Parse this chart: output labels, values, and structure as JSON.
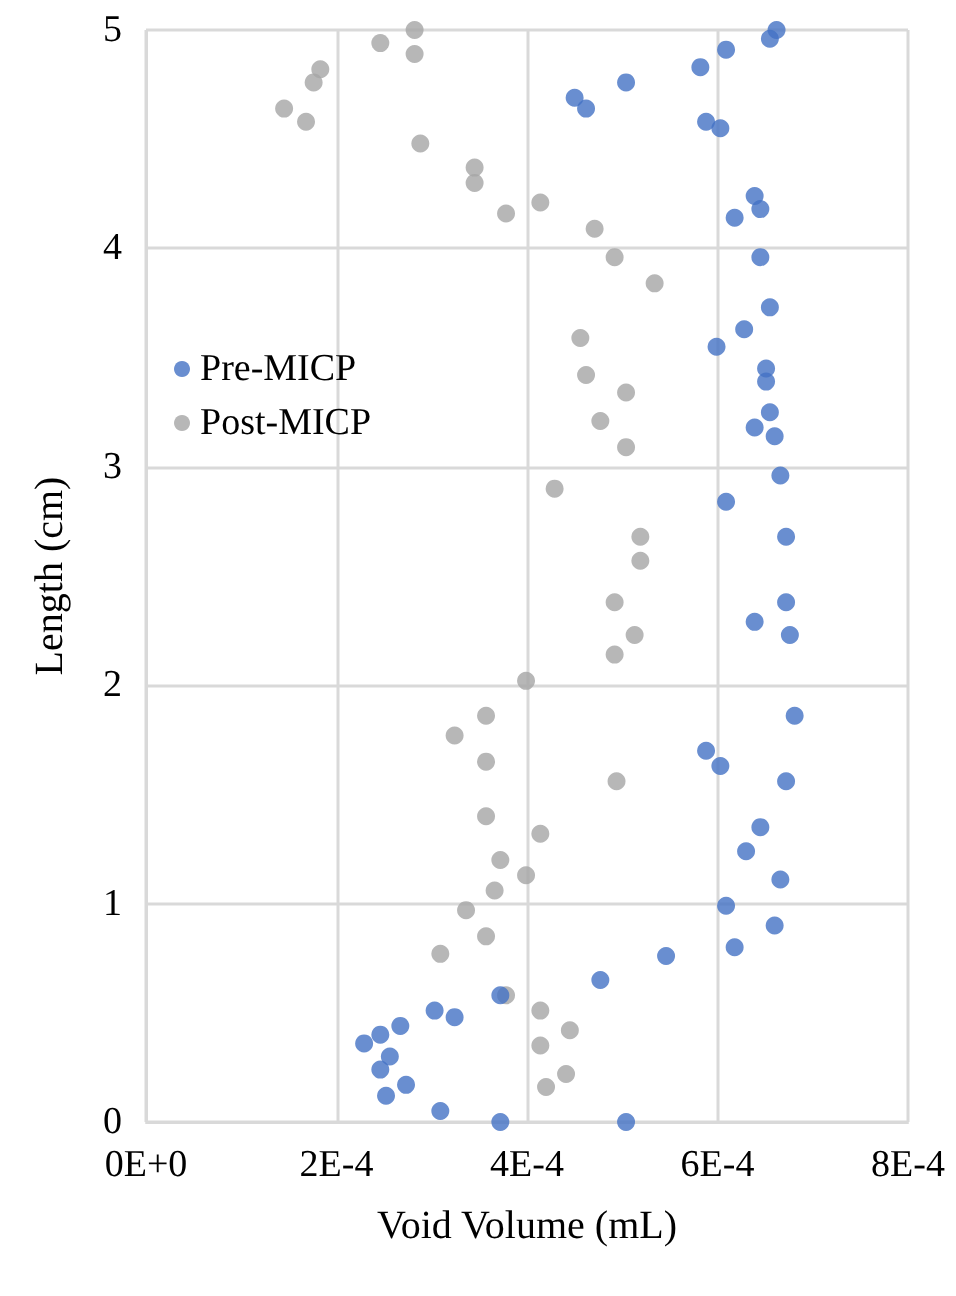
{
  "chart_data": {
    "type": "scatter",
    "xlabel": "Void Volume (mL)",
    "ylabel": "Length (cm)",
    "xlim": [
      0,
      0.0008
    ],
    "xticks": [
      {
        "value": 0,
        "label": "0E+0"
      },
      {
        "value": 0.0002,
        "label": "2E-4"
      },
      {
        "value": 0.0004,
        "label": "4E-4"
      },
      {
        "value": 0.0006,
        "label": "6E-4"
      },
      {
        "value": 0.0008,
        "label": "8E-4"
      }
    ],
    "ylim": [
      0,
      5
    ],
    "yticks": [
      0,
      1,
      2,
      3,
      4,
      5
    ],
    "grid": true,
    "legend": "left",
    "marker": "circle",
    "series": [
      {
        "name": "Pre-MICP",
        "color": "#4472c4",
        "x": [
          0.000504,
          0.000372,
          0.000309,
          0.000252,
          0.000273,
          0.000246,
          0.000256,
          0.000229,
          0.000246,
          0.000267,
          0.000324,
          0.000303,
          0.000372,
          0.000477,
          0.000546,
          0.000618,
          0.00066,
          0.000609,
          0.000666,
          0.00063,
          0.000645,
          0.000672,
          0.000603,
          0.000588,
          0.000681,
          0.000676,
          0.000639,
          0.000672,
          0.000672,
          0.000609,
          0.000666,
          0.00066,
          0.000639,
          0.000655,
          0.000651,
          0.000651,
          0.000599,
          0.000628,
          0.000655,
          0.000645,
          0.000618,
          0.000645,
          0.000639,
          0.000603,
          0.000588,
          0.000462,
          0.00045,
          0.000504,
          0.000582,
          0.000609,
          0.000655,
          0.000662
        ],
        "values": [
          0,
          0,
          0.05,
          0.12,
          0.17,
          0.24,
          0.3,
          0.36,
          0.4,
          0.44,
          0.48,
          0.51,
          0.58,
          0.65,
          0.76,
          0.8,
          0.9,
          0.99,
          1.11,
          1.24,
          1.35,
          1.56,
          1.63,
          1.7,
          1.86,
          2.23,
          2.29,
          2.38,
          2.68,
          2.84,
          2.96,
          3.14,
          3.18,
          3.25,
          3.39,
          3.45,
          3.55,
          3.63,
          3.73,
          3.96,
          4.14,
          4.18,
          4.24,
          4.55,
          4.58,
          4.64,
          4.69,
          4.76,
          4.83,
          4.91,
          4.96,
          5
        ]
      },
      {
        "name": "Post-MICP",
        "color": "#a5a5a5",
        "x": [
          0.00042,
          0.000441,
          0.000414,
          0.000445,
          0.000414,
          0.000378,
          0.000309,
          0.000357,
          0.000336,
          0.000366,
          0.000399,
          0.000372,
          0.000414,
          0.000357,
          0.000494,
          0.000357,
          0.000324,
          0.000357,
          0.000399,
          0.000492,
          0.000513,
          0.000492,
          0.000519,
          0.000519,
          0.000429,
          0.000504,
          0.000477,
          0.000504,
          0.000462,
          0.000456,
          0.000534,
          0.000492,
          0.000471,
          0.000378,
          0.000414,
          0.000345,
          0.000345,
          0.000288,
          0.000168,
          0.000145,
          0.000176,
          0.000183,
          0.000282,
          0.000246,
          0.000282
        ],
        "values": [
          0.16,
          0.22,
          0.35,
          0.42,
          0.51,
          0.58,
          0.77,
          0.85,
          0.97,
          1.06,
          1.13,
          1.2,
          1.32,
          1.4,
          1.56,
          1.65,
          1.77,
          1.86,
          2.02,
          2.14,
          2.23,
          2.38,
          2.57,
          2.68,
          2.9,
          3.09,
          3.21,
          3.34,
          3.42,
          3.59,
          3.84,
          3.96,
          4.09,
          4.16,
          4.21,
          4.3,
          4.37,
          4.48,
          4.58,
          4.64,
          4.76,
          4.82,
          4.89,
          4.94,
          5
        ]
      }
    ]
  }
}
